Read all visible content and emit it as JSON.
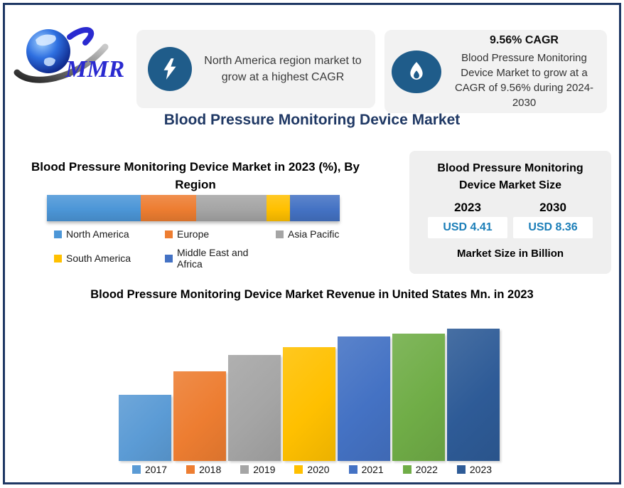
{
  "page": {
    "title": "Blood Pressure Monitoring Device Market"
  },
  "logo": {
    "text": "MMR"
  },
  "callouts": [
    {
      "icon": "lightning-icon",
      "text": "North America region market to grow at a highest CAGR"
    },
    {
      "icon": "flame-icon",
      "heading": "9.56% CAGR",
      "text": "Blood Pressure Monitoring Device Market to grow at a CAGR of 9.56% during 2024-2030"
    }
  ],
  "market_size_box": {
    "title": "Blood Pressure Monitoring Device Market Size",
    "years": [
      "2023",
      "2030"
    ],
    "values": [
      "USD 4.41",
      "USD 8.36"
    ],
    "footer": "Market Size in Billion",
    "value_color": "#1b7eb8"
  },
  "chart_data": [
    {
      "type": "bar",
      "subtype": "single-stacked-horizontal-bar",
      "title": "Blood Pressure Monitoring Device Market in 2023 (%), By Region",
      "unit": "percent share; no data labels shown, segment values estimated from pixel widths",
      "segments": [
        {
          "name": "North America",
          "value": 32,
          "color": "#4C96D7"
        },
        {
          "name": "Europe",
          "value": 19,
          "color": "#ED7D31"
        },
        {
          "name": "Asia Pacific",
          "value": 24,
          "color": "#A5A5A5"
        },
        {
          "name": "South America",
          "value": 8,
          "color": "#FFC000"
        },
        {
          "name": "Middle East and Africa",
          "value": 17,
          "color": "#4472C4"
        }
      ],
      "legend_position": "bottom",
      "gridlines": false
    },
    {
      "type": "bar",
      "title": "Blood Pressure Monitoring Device Market Revenue in United States Mn. in 2023",
      "categories": [
        "2017",
        "2018",
        "2019",
        "2020",
        "2021",
        "2022",
        "2023"
      ],
      "values": [
        50,
        68,
        80,
        86,
        94,
        96,
        100
      ],
      "value_note": "no axis or data labels shown; values are bar heights as percent of tallest (2023) bar",
      "colors": [
        "#5B9BD5",
        "#ED7D31",
        "#A5A5A5",
        "#FFC000",
        "#4472C4",
        "#70AD47",
        "#2E5B97"
      ],
      "legend_position": "bottom",
      "gridlines": false
    }
  ],
  "theme": {
    "border_color": "#1f3864",
    "title_color": "#1f3864",
    "callout_bg": "#f2f2f2",
    "icon_circle_color": "#1f5c8a",
    "card_bg": "#efefef"
  }
}
